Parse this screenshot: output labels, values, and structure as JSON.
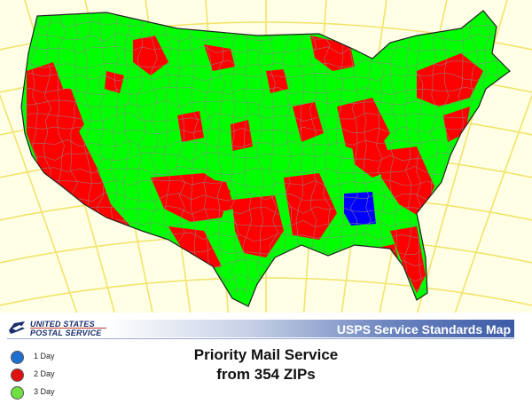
{
  "header": {
    "logo_line1": "UNITED STATES",
    "logo_line2": "POSTAL SERVICE",
    "title": "USPS Service Standards Map"
  },
  "map_title": {
    "line1": "Priority Mail Service",
    "line2": "from 354 ZIPs"
  },
  "legend": [
    {
      "label": "1 Day",
      "color": "#1f6fd1"
    },
    {
      "label": "2 Day",
      "color": "#e01010"
    },
    {
      "label": "3 Day",
      "color": "#6fe040"
    }
  ],
  "colors": {
    "background": "#ffffe6",
    "graticule": "#f2e36a",
    "one_day": "#0000ff",
    "two_day": "#ff0000",
    "three_day": "#00ff00",
    "boundaries": "#888888"
  }
}
